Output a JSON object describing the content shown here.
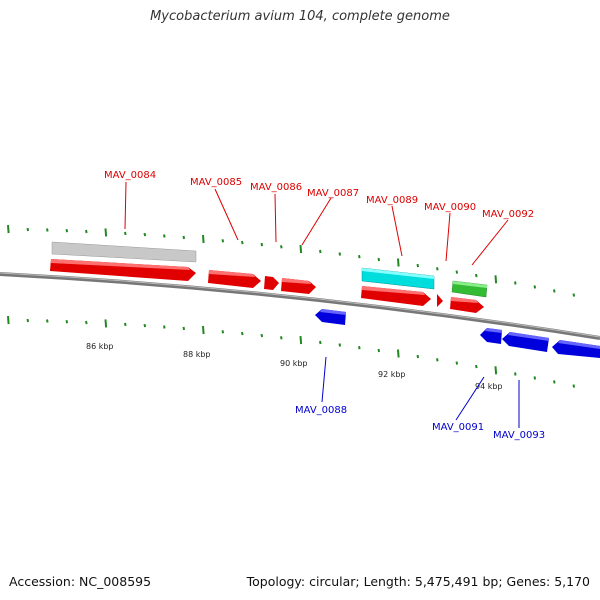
{
  "title": "Mycobacterium avium 104, complete genome",
  "footer": {
    "accession": "Accession: NC_008595",
    "summary": "Topology: circular; Length: 5,475,491 bp; Genes: 5,170"
  },
  "colors": {
    "forward_gene": "#e00000",
    "reverse_gene": "#0000dd",
    "pseudo_gene": "#c8c8c8",
    "rna_gene": "#00dddd",
    "other_gene": "#33bb33",
    "scale": "#228822",
    "backbone": "#777777"
  },
  "scale_labels": {
    "k86": "86 kbp",
    "k88": "88 kbp",
    "k90": "90 kbp",
    "k92": "92 kbp",
    "k94": "94 kbp"
  },
  "genes": {
    "MAV_0084": "MAV_0084",
    "MAV_0085": "MAV_0085",
    "MAV_0086": "MAV_0086",
    "MAV_0087": "MAV_0087",
    "MAV_0088": "MAV_0088",
    "MAV_0089": "MAV_0089",
    "MAV_0090": "MAV_0090",
    "MAV_0091": "MAV_0091",
    "MAV_0092": "MAV_0092",
    "MAV_0093": "MAV_0093"
  }
}
